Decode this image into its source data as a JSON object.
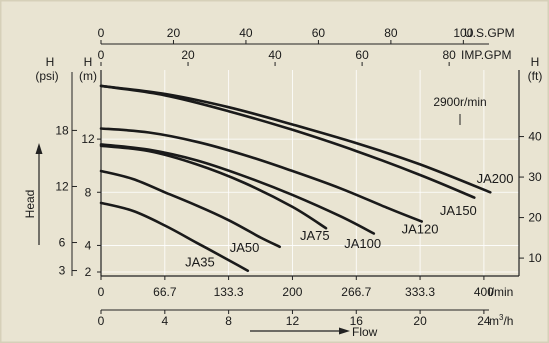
{
  "chart_data": {
    "type": "line",
    "speed_label": "2900r/min",
    "axes": {
      "usgpm": {
        "unit": "U.S.GPM",
        "ticks": [
          "0",
          "20",
          "40",
          "60",
          "80",
          "100"
        ],
        "values": [
          0,
          20,
          40,
          60,
          80,
          100
        ]
      },
      "impgpm": {
        "unit": "IMP.GPM",
        "ticks": [
          "0",
          "20",
          "40",
          "60",
          "80"
        ],
        "values": [
          0,
          20,
          40,
          60,
          80
        ]
      },
      "lmin": {
        "unit": "l/min",
        "ticks": [
          "0",
          "66.7",
          "133.3",
          "200",
          "266.7",
          "333.3",
          "400"
        ],
        "values": [
          0,
          66.7,
          133.3,
          200,
          266.7,
          333.3,
          400
        ]
      },
      "m3h": {
        "unit": "m³/h",
        "unit_base": "m",
        "unit_sup": "3",
        "unit_tail": "/h",
        "ticks": [
          "0",
          "4",
          "8",
          "12",
          "16",
          "20",
          "24"
        ],
        "values": [
          0,
          4,
          8,
          12,
          16,
          20,
          24
        ]
      },
      "head_m": {
        "letter": "H",
        "unit": "(m)",
        "ticks": [
          "2",
          "4",
          "8",
          "12"
        ],
        "values": [
          2,
          4,
          8,
          12
        ]
      },
      "head_psi": {
        "letter": "H",
        "unit": "(psi)",
        "ticks": [
          "3",
          "6",
          "12",
          "18"
        ],
        "values": [
          3,
          6,
          12,
          18
        ]
      },
      "head_ft": {
        "letter": "H",
        "unit": "(ft)",
        "ticks": [
          "10",
          "20",
          "30",
          "40"
        ],
        "values": [
          10,
          20,
          30,
          40
        ]
      },
      "xlabel": "Flow",
      "ylabel": "Head",
      "xlim_m3h": [
        0,
        26.2
      ],
      "ylim_m": [
        1.7,
        17.2
      ]
    },
    "series": [
      {
        "name": "JA35",
        "x": [
          0,
          2,
          4,
          6,
          8,
          9.2
        ],
        "y": [
          7.2,
          6.6,
          5.5,
          4.2,
          2.9,
          2.1
        ]
      },
      {
        "name": "JA50",
        "x": [
          0,
          2,
          4,
          6,
          8,
          10,
          11.2
        ],
        "y": [
          9.6,
          9.0,
          8.0,
          7.0,
          5.9,
          4.6,
          3.9
        ]
      },
      {
        "name": "JA75",
        "x": [
          0,
          3,
          6,
          9,
          12,
          14.1
        ],
        "y": [
          11.5,
          11.1,
          10.1,
          8.7,
          6.9,
          5.3
        ]
      },
      {
        "name": "JA100",
        "x": [
          0,
          3,
          6,
          9,
          12,
          15,
          17.1
        ],
        "y": [
          11.6,
          11.2,
          10.4,
          9.2,
          7.8,
          6.2,
          4.9
        ]
      },
      {
        "name": "JA120",
        "x": [
          0,
          3,
          6,
          9,
          12,
          15,
          18,
          20.1
        ],
        "y": [
          12.8,
          12.5,
          11.8,
          10.8,
          9.6,
          8.3,
          6.8,
          5.8
        ]
      },
      {
        "name": "JA150",
        "x": [
          0,
          4,
          8,
          12,
          16,
          20,
          23.4
        ],
        "y": [
          16.0,
          15.3,
          14.1,
          12.7,
          11.1,
          9.3,
          7.6
        ]
      },
      {
        "name": "JA200",
        "x": [
          0,
          4,
          8,
          12,
          16,
          20,
          24.4
        ],
        "y": [
          16.0,
          15.4,
          14.4,
          13.1,
          11.7,
          10.1,
          8.0
        ]
      }
    ],
    "label_positions": {
      "JA35": [
        6.2,
        2.7
      ],
      "JA50": [
        9.0,
        3.8
      ],
      "JA75": [
        13.4,
        4.7
      ],
      "JA100": [
        16.4,
        4.1
      ],
      "JA120": [
        20.0,
        5.2
      ],
      "JA150": [
        22.4,
        6.6
      ],
      "JA200": [
        24.7,
        9.0
      ]
    },
    "grid": true,
    "legend": "none"
  }
}
